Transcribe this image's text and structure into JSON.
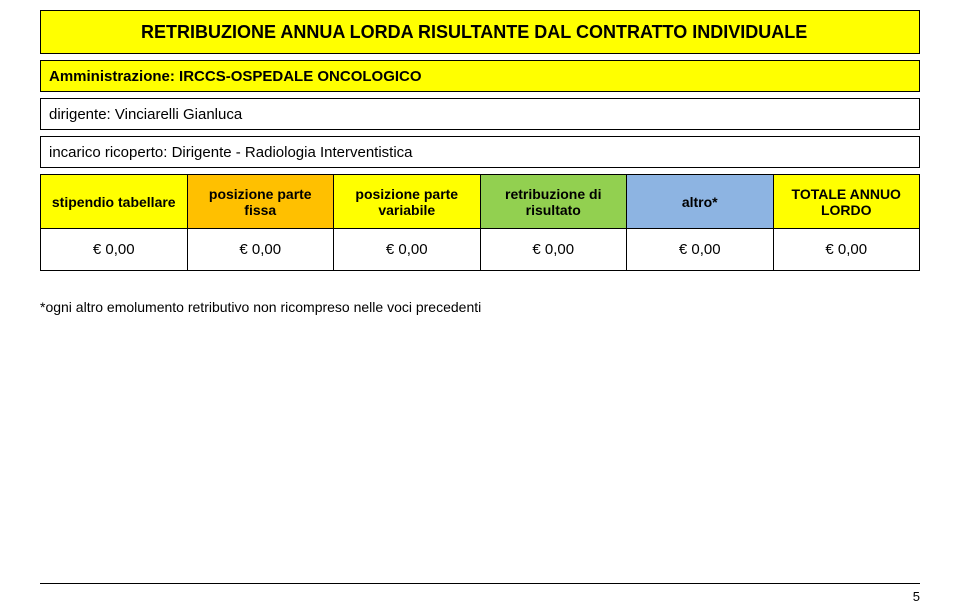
{
  "title": "RETRIBUZIONE ANNUA LORDA RISULTANTE DAL CONTRATTO INDIVIDUALE",
  "admin_row": {
    "label": "Amministrazione:",
    "value": "IRCCS-OSPEDALE ONCOLOGICO"
  },
  "dirigente_row": {
    "label": "dirigente:",
    "value": "Vinciarelli Gianluca"
  },
  "incarico_row": {
    "label": "incarico ricoperto:",
    "value": "Dirigente - Radiologia Interventistica"
  },
  "table": {
    "headers": {
      "col0": {
        "text": "stipendio tabellare",
        "bg": "#ffff00"
      },
      "col1": {
        "text": "posizione parte fissa",
        "bg": "#ffc000"
      },
      "col2": {
        "text": "posizione parte variabile",
        "bg": "#ffff00"
      },
      "col3": {
        "text": "retribuzione di risultato",
        "bg": "#92d050"
      },
      "col4": {
        "text": "altro*",
        "bg": "#8db4e2"
      },
      "col5": {
        "text": "TOTALE ANNUO LORDO",
        "bg": "#ffff00"
      }
    },
    "row": {
      "col0": "€ 0,00",
      "col1": "€ 0,00",
      "col2": "€ 0,00",
      "col3": "€ 0,00",
      "col4": "€ 0,00",
      "col5": "€ 0,00"
    }
  },
  "note": "*ogni altro emolumento retributivo non ricompreso nelle voci precedenti",
  "page_number": "5",
  "colors": {
    "yellow": "#ffff00",
    "orange": "#ffc000",
    "green": "#92d050",
    "blue": "#8db4e2",
    "border": "#000000",
    "background": "#ffffff",
    "text": "#000000"
  }
}
